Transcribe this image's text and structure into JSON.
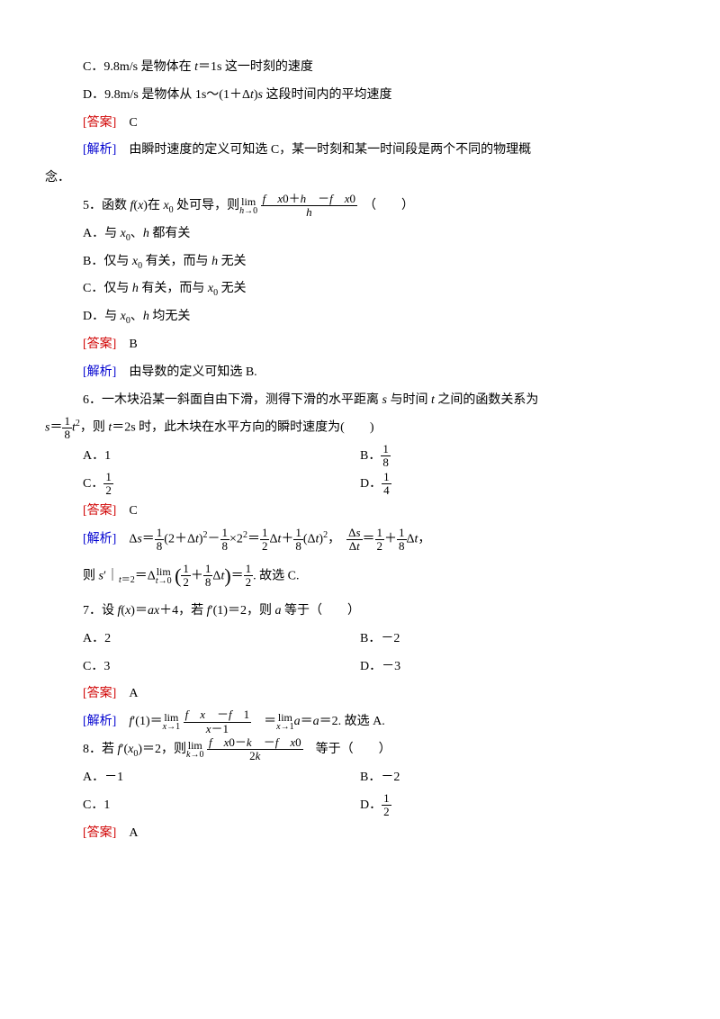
{
  "items": [
    {
      "type": "line",
      "cls": "indent1",
      "html": "C．9.8m/s 是物体在 <span class='italic'>t</span>＝1s 这一时刻的速度"
    },
    {
      "type": "line",
      "cls": "indent1",
      "html": "D．9.8m/s 是物体从 1s～(1＋Δ<span class='italic'>t</span>)<span class='italic'>s</span> 这段时间内的平均速度"
    },
    {
      "type": "line",
      "cls": "indent1",
      "html": "<span class='red'>[答案]</span>　C"
    },
    {
      "type": "line",
      "cls": "indent1",
      "html": "<span class='blue'>[解析]</span>　由瞬时速度的定义可知选 C，某一时刻和某一时间段是两个不同的物理概"
    },
    {
      "type": "line",
      "cls": "indent0",
      "html": "念．"
    },
    {
      "type": "line",
      "cls": "indent1",
      "html": "5．函数 <span class='italic'>f</span>(<span class='italic'>x</span>)在 <span class='italic'>x</span><sub>0</sub> 处可导，则<span class='lim'><span class='top'>lim</span><span class='bot'><span class='italic'>h</span>→0</span></span> <span class='frac'><span class='num'><span class='italic'>f</span>　<span class='italic'>x</span>0＋<span class='italic'>h</span>　－<span class='italic'>f</span>　<span class='italic'>x</span>0</span><span class='den'><span class='italic'>h</span></span></span>　（　　）"
    },
    {
      "type": "line",
      "cls": "indent1",
      "html": "A．与 <span class='italic'>x</span><sub>0</sub>、<span class='italic'>h</span> 都有关"
    },
    {
      "type": "line",
      "cls": "indent1",
      "html": "B．仅与 <span class='italic'>x</span><sub>0</sub> 有关，而与 <span class='italic'>h</span> 无关"
    },
    {
      "type": "line",
      "cls": "indent1",
      "html": "C．仅与 <span class='italic'>h</span> 有关，而与 <span class='italic'>x</span><sub>0</sub> 无关"
    },
    {
      "type": "line",
      "cls": "indent1",
      "html": "D．与 <span class='italic'>x</span><sub>0</sub>、<span class='italic'>h</span> 均无关"
    },
    {
      "type": "line",
      "cls": "indent1",
      "html": "<span class='red'>[答案]</span>　B"
    },
    {
      "type": "line",
      "cls": "indent1",
      "html": "<span class='blue'>[解析]</span>　由导数的定义可知选 B."
    },
    {
      "type": "line",
      "cls": "indent1",
      "html": "6．一木块沿某一斜面自由下滑，测得下滑的水平距离 <span class='italic'>s</span> 与时间 <span class='italic'>t</span> 之间的函数关系为"
    },
    {
      "type": "line",
      "cls": "indent0",
      "html": "<span class='italic'>s</span>＝<span class='frac'><span class='num'>1</span><span class='den'>8</span></span><span class='italic'>t</span><sup>2</sup>，则 <span class='italic'>t</span>＝2s 时，此木块在水平方向的瞬时速度为(　　)"
    },
    {
      "type": "twocol",
      "left": "A．1",
      "right": "B．<span class='frac'><span class='num'>1</span><span class='den'>8</span></span>"
    },
    {
      "type": "twocol",
      "left": "C．<span class='frac'><span class='num'>1</span><span class='den'>2</span></span>",
      "right": "D．<span class='frac'><span class='num'>1</span><span class='den'>4</span></span>"
    },
    {
      "type": "line",
      "cls": "indent1",
      "html": "<span class='red'>[答案]</span>　C"
    },
    {
      "type": "line",
      "cls": "indent1",
      "html": "<span class='blue'>[解析]</span>　Δ<span class='italic'>s</span>＝<span class='frac'><span class='num'>1</span><span class='den'>8</span></span>(2＋Δ<span class='italic'>t</span>)<sup>2</sup>－<span class='frac'><span class='num'>1</span><span class='den'>8</span></span>×2<sup>2</sup>＝<span class='frac'><span class='num'>1</span><span class='den'>2</span></span>Δ<span class='italic'>t</span>＋<span class='frac'><span class='num'>1</span><span class='den'>8</span></span>(Δ<span class='italic'>t</span>)<sup>2</sup>，　<span class='frac'><span class='num'>Δ<span class='italic'>s</span></span><span class='den'>Δ<span class='italic'>t</span></span></span>＝<span class='frac'><span class='num'>1</span><span class='den'>2</span></span>＋<span class='frac'><span class='num'>1</span><span class='den'>8</span></span>Δ<span class='italic'>t</span>，"
    },
    {
      "type": "line",
      "cls": "indent1",
      "html": "则 <span class='italic'>s</span>′｜<sub><span class='italic'>t</span>＝2</sub>＝Δ<span class='lim'><span class='top'>lim</span><span class='bot'><span class='italic'>t</span>→0</span></span> <span class='paren-big'>(</span><span class='frac'><span class='num'>1</span><span class='den'>2</span></span>＋<span class='frac'><span class='num'>1</span><span class='den'>8</span></span>Δ<span class='italic'>t</span><span class='paren-big'>)</span>＝<span class='frac'><span class='num'>1</span><span class='den'>2</span></span>. 故选 C."
    },
    {
      "type": "line",
      "cls": "indent1",
      "html": "7．设 <span class='italic'>f</span>(<span class='italic'>x</span>)＝<span class='italic'>ax</span>＋4，若 <span class='italic'>f</span>′(1)＝2，则 <span class='italic'>a</span> 等于（　　）"
    },
    {
      "type": "twocol",
      "left": "A．2",
      "right": "B．－2"
    },
    {
      "type": "twocol",
      "left": "C．3",
      "right": "D．－3"
    },
    {
      "type": "line",
      "cls": "indent1",
      "html": "<span class='red'>[答案]</span>　A"
    },
    {
      "type": "line",
      "cls": "indent1",
      "html": "<span class='blue'>[解析]</span>　<span class='italic'>f</span>′(1)＝<span class='lim'><span class='top'>lim</span><span class='bot'><span class='italic'>x</span>→1</span></span> <span class='frac'><span class='num'><span class='italic'>f</span>　<span class='italic'>x</span>　－<span class='italic'>f</span>　1</span><span class='den'><span class='italic'>x</span>－1</span></span>　＝<span class='lim'><span class='top'>lim</span><span class='bot'><span class='italic'>x</span>→1</span></span><span class='italic'>a</span>＝<span class='italic'>a</span>＝2. 故选 A."
    },
    {
      "type": "line",
      "cls": "indent1",
      "html": "8．若 <span class='italic'>f</span>′(<span class='italic'>x</span><sub>0</sub>)＝2，则<span class='lim'><span class='top'>lim</span><span class='bot'><span class='italic'>k</span>→0</span></span> <span class='frac'><span class='num'><span class='italic'>f</span>　<span class='italic'>x</span>0－<span class='italic'>k</span>　－<span class='italic'>f</span>　<span class='italic'>x</span>0</span><span class='den'>2<span class='italic'>k</span></span></span>　等于（　　）"
    },
    {
      "type": "twocol",
      "left": "A．－1",
      "right": "B．－2"
    },
    {
      "type": "twocol",
      "left": "C．1",
      "right": "D．<span class='frac'><span class='num'>1</span><span class='den'>2</span></span>"
    },
    {
      "type": "line",
      "cls": "indent1",
      "html": "<span class='red'>[答案]</span>　A"
    }
  ]
}
